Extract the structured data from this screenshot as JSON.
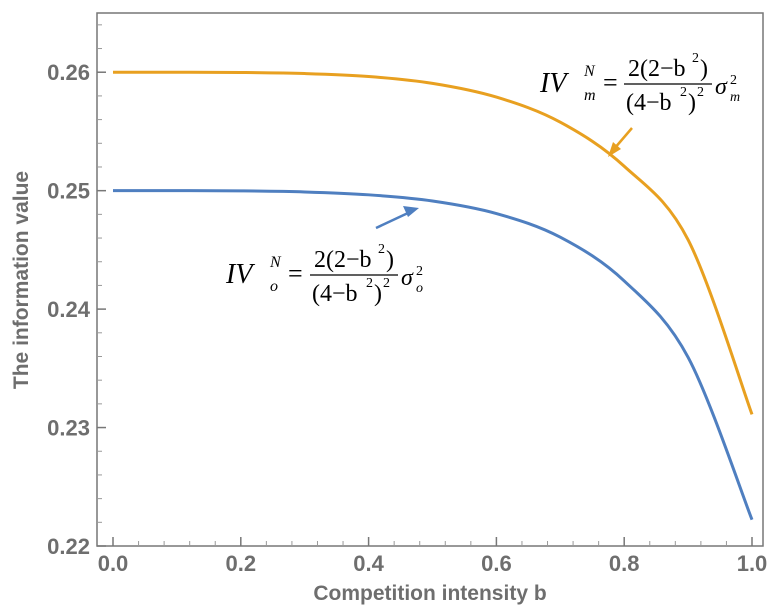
{
  "chart_data": {
    "type": "line",
    "title": "",
    "xlabel": "Competition intensity b",
    "ylabel": "The information value",
    "xlim": [
      0,
      1
    ],
    "ylim": [
      0.22,
      0.265
    ],
    "x_ticks": [
      "0.0",
      "0.2",
      "0.4",
      "0.6",
      "0.8",
      "1.0"
    ],
    "y_ticks": [
      "0.22",
      "0.23",
      "0.24",
      "0.25",
      "0.26"
    ],
    "grid": false,
    "series": [
      {
        "color": "#E8A020",
        "x": [
          0.0,
          0.1,
          0.2,
          0.3,
          0.4,
          0.5,
          0.6,
          0.7,
          0.8,
          0.9,
          1.0
        ],
        "values": [
          0.26,
          0.26,
          0.25998,
          0.25989,
          0.25964,
          0.25906,
          0.2579,
          0.25578,
          0.25206,
          0.24585,
          0.23111
        ]
      },
      {
        "color": "#4F7FC0",
        "x": [
          0.0,
          0.1,
          0.2,
          0.3,
          0.4,
          0.5,
          0.6,
          0.7,
          0.8,
          0.9,
          1.0
        ],
        "values": [
          0.25,
          0.25,
          0.24998,
          0.24989,
          0.24965,
          0.24913,
          0.24807,
          0.24607,
          0.24238,
          0.23593,
          0.22222
        ]
      }
    ],
    "annotations": [
      {
        "series": 0,
        "lhs": "IV",
        "lhs_sub": "m",
        "lhs_sup": "N",
        "equals": "=",
        "numerator": "2(2−b",
        "numerator_sup": "2",
        "numerator_close": ")",
        "denominator": "(4−b",
        "denominator_sup": "2",
        "denominator_close": ")",
        "denominator_sup2": "2",
        "sigma": "σ",
        "sigma_sup": "2",
        "sigma_sub": "m"
      },
      {
        "series": 1,
        "lhs": "IV",
        "lhs_sub": "o",
        "lhs_sup": "N",
        "equals": "=",
        "numerator": "2(2−b",
        "numerator_sup": "2",
        "numerator_close": ")",
        "denominator": "(4−b",
        "denominator_sup": "2",
        "denominator_close": ")",
        "denominator_sup2": "2",
        "sigma": "σ",
        "sigma_sup": "2",
        "sigma_sub": "o"
      }
    ]
  }
}
